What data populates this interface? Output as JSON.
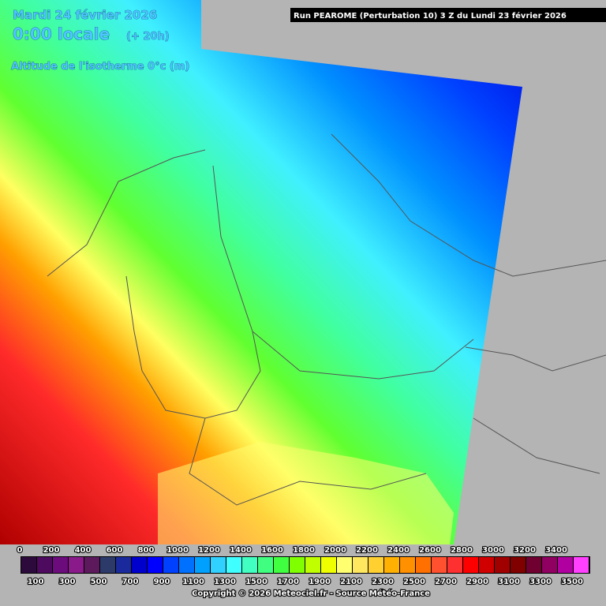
{
  "header": {
    "date": "Mardi 24 février 2026",
    "time": "0:00 locale",
    "lead": "(+ 20h)",
    "parameter": "Altitude de l'isotherme 0°c (m)",
    "run": "Run PEAROME (Perturbation 10) 3 Z du Lundi 23 février 2026"
  },
  "legend": {
    "labels": [
      0,
      100,
      200,
      300,
      400,
      500,
      600,
      700,
      800,
      900,
      1000,
      1100,
      1200,
      1300,
      1400,
      1500,
      1600,
      1700,
      1800,
      1900,
      2000,
      2100,
      2200,
      2300,
      2400,
      2500,
      2600,
      2700,
      2800,
      2900,
      3000,
      3100,
      3200,
      3300,
      3400,
      3500
    ],
    "colors": [
      "#2c0b3c",
      "#4d0a5e",
      "#6c0c7c",
      "#8a1a8a",
      "#5c1a5c",
      "#2c3a6a",
      "#1a2a9c",
      "#0000cc",
      "#0000ff",
      "#0040ff",
      "#0070ff",
      "#00a0ff",
      "#30d0ff",
      "#40ffff",
      "#40ffc0",
      "#40ff80",
      "#40ff40",
      "#80ff00",
      "#c0ff00",
      "#f0ff00",
      "#ffff70",
      "#ffe860",
      "#ffd030",
      "#ffb000",
      "#ff9000",
      "#ff7000",
      "#ff5030",
      "#ff3030",
      "#ff0000",
      "#d00000",
      "#a00000",
      "#800000",
      "#700030",
      "#900060",
      "#b000a0",
      "#ff40ff"
    ]
  },
  "footer": {
    "copyright": "Copyright © 2026 Meteociel.fr - Source Météo-France"
  }
}
